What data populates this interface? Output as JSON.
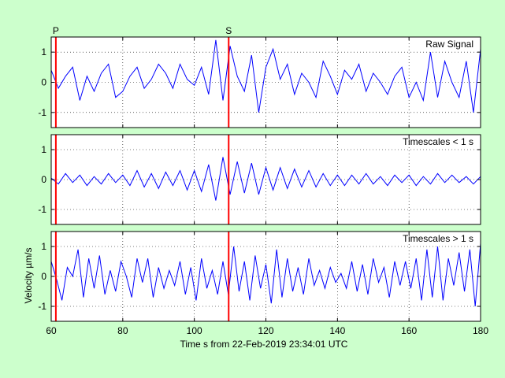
{
  "colors": {
    "background": "#ccffcc",
    "plot_background": "#ffffff",
    "signal": "#0000ff",
    "phase_marker": "#ff0000",
    "grid": "#000000"
  },
  "xlabel": "Time s from 22-Feb-2019 23:34:01 UTC",
  "ylabel": "Velocity µm/s",
  "chart_data": [
    {
      "type": "line",
      "label": "Raw Signal",
      "xlim": [
        60,
        180
      ],
      "ylim": [
        -1.5,
        1.5
      ],
      "xticks": [
        60,
        80,
        100,
        120,
        140,
        160,
        180
      ],
      "yticks": [
        -1,
        0,
        1
      ],
      "grid": true,
      "phases": [
        {
          "name": "P",
          "x": 61.3
        },
        {
          "name": "S",
          "x": 109.6
        }
      ],
      "x": [
        60,
        62,
        64,
        66,
        68,
        70,
        72,
        74,
        76,
        78,
        80,
        82,
        84,
        86,
        88,
        90,
        92,
        94,
        96,
        98,
        100,
        102,
        104,
        106,
        108,
        110,
        112,
        114,
        116,
        118,
        120,
        122,
        124,
        126,
        128,
        130,
        132,
        134,
        136,
        138,
        140,
        142,
        144,
        146,
        148,
        150,
        152,
        154,
        156,
        158,
        160,
        162,
        164,
        166,
        168,
        170,
        172,
        174,
        176,
        178,
        180
      ],
      "y": [
        0.4,
        -0.2,
        0.2,
        0.5,
        -0.6,
        0.2,
        -0.3,
        0.3,
        0.6,
        -0.5,
        -0.3,
        0.2,
        0.5,
        -0.2,
        0.1,
        0.6,
        0.3,
        -0.2,
        0.6,
        0.1,
        -0.1,
        0.5,
        -0.4,
        1.4,
        -0.6,
        1.2,
        0.2,
        -0.3,
        0.9,
        -1.0,
        0.5,
        1.1,
        0.1,
        0.6,
        -0.4,
        0.3,
        0.0,
        -0.5,
        0.7,
        0.2,
        -0.4,
        0.4,
        0.1,
        0.6,
        -0.3,
        0.3,
        0.0,
        -0.4,
        0.2,
        0.5,
        -0.5,
        0.0,
        -0.6,
        1.0,
        -0.5,
        0.7,
        0.0,
        -0.5,
        0.7,
        -1.0,
        1.1
      ]
    },
    {
      "type": "line",
      "label": "Timescales < 1 s",
      "xlim": [
        60,
        180
      ],
      "ylim": [
        -1.5,
        1.5
      ],
      "xticks": [
        60,
        80,
        100,
        120,
        140,
        160,
        180
      ],
      "yticks": [
        -1,
        0,
        1
      ],
      "grid": true,
      "phases": [
        {
          "name": "P",
          "x": 61.3
        },
        {
          "name": "S",
          "x": 109.6
        }
      ],
      "x": [
        60,
        62,
        64,
        66,
        68,
        70,
        72,
        74,
        76,
        78,
        80,
        82,
        84,
        86,
        88,
        90,
        92,
        94,
        96,
        98,
        100,
        102,
        104,
        106,
        108,
        110,
        112,
        114,
        116,
        118,
        120,
        122,
        124,
        126,
        128,
        130,
        132,
        134,
        136,
        138,
        140,
        142,
        144,
        146,
        148,
        150,
        152,
        154,
        156,
        158,
        160,
        162,
        164,
        166,
        168,
        170,
        172,
        174,
        176,
        178,
        180
      ],
      "y": [
        0.05,
        -0.15,
        0.2,
        -0.1,
        0.15,
        -0.2,
        0.1,
        -0.15,
        0.2,
        -0.1,
        0.15,
        -0.2,
        0.3,
        -0.25,
        0.2,
        -0.3,
        0.25,
        -0.2,
        0.3,
        -0.35,
        0.3,
        -0.4,
        0.5,
        -0.7,
        0.75,
        -0.5,
        0.6,
        -0.45,
        0.55,
        -0.5,
        0.4,
        -0.35,
        0.4,
        -0.3,
        0.35,
        -0.25,
        0.3,
        -0.25,
        0.2,
        -0.2,
        0.15,
        -0.2,
        0.15,
        -0.15,
        0.2,
        -0.15,
        0.1,
        -0.2,
        0.15,
        -0.1,
        0.15,
        -0.2,
        0.1,
        -0.15,
        0.2,
        -0.1,
        0.15,
        -0.1,
        0.1,
        -0.15,
        0.1
      ]
    },
    {
      "type": "line",
      "label": "Timescales > 1 s",
      "xlim": [
        60,
        180
      ],
      "ylim": [
        -1.5,
        1.5
      ],
      "xticks": [
        60,
        80,
        100,
        120,
        140,
        160,
        180
      ],
      "yticks": [
        -1,
        0,
        1
      ],
      "grid": true,
      "phases": [
        {
          "name": "P",
          "x": 61.3
        },
        {
          "name": "S",
          "x": 109.6
        }
      ],
      "x": [
        60,
        61.5,
        63,
        64.5,
        66,
        67.5,
        69,
        70.5,
        72,
        73.5,
        75,
        76.5,
        78,
        79.5,
        81,
        82.5,
        84,
        85.5,
        87,
        88.5,
        90,
        91.5,
        93,
        94.5,
        96,
        97.5,
        99,
        100.5,
        102,
        103.5,
        105,
        106.5,
        108,
        109.5,
        111,
        112.5,
        114,
        115.5,
        117,
        118.5,
        120,
        121.5,
        123,
        124.5,
        126,
        127.5,
        129,
        130.5,
        132,
        133.5,
        135,
        136.5,
        138,
        139.5,
        141,
        142.5,
        144,
        145.5,
        147,
        148.5,
        150,
        151.5,
        153,
        154.5,
        156,
        157.5,
        159,
        160.5,
        162,
        163.5,
        165,
        166.5,
        168,
        169.5,
        171,
        172.5,
        174,
        175.5,
        177,
        178.5,
        180
      ],
      "y": [
        0.5,
        -0.1,
        -0.8,
        0.3,
        0.0,
        0.9,
        -0.7,
        0.6,
        -0.4,
        0.7,
        -0.6,
        0.2,
        -0.5,
        0.5,
        0.0,
        -0.7,
        0.6,
        -0.2,
        0.6,
        -0.7,
        0.3,
        -0.4,
        0.2,
        -0.3,
        0.5,
        -0.6,
        0.3,
        -0.8,
        0.6,
        -0.4,
        0.2,
        -0.6,
        0.5,
        -0.6,
        1.0,
        -0.5,
        0.5,
        -0.8,
        0.7,
        -0.4,
        0.4,
        -0.9,
        0.9,
        -0.7,
        0.6,
        -0.5,
        0.3,
        -0.6,
        0.6,
        -0.3,
        0.2,
        -0.4,
        0.3,
        -0.2,
        0.1,
        -0.4,
        0.5,
        -0.5,
        0.4,
        -0.6,
        0.6,
        -0.2,
        0.3,
        -0.7,
        0.5,
        -0.3,
        0.5,
        -0.4,
        0.6,
        -0.8,
        0.9,
        -0.7,
        1.0,
        -0.8,
        0.6,
        -0.3,
        0.8,
        -0.5,
        0.9,
        -1.0,
        1.1
      ]
    }
  ]
}
